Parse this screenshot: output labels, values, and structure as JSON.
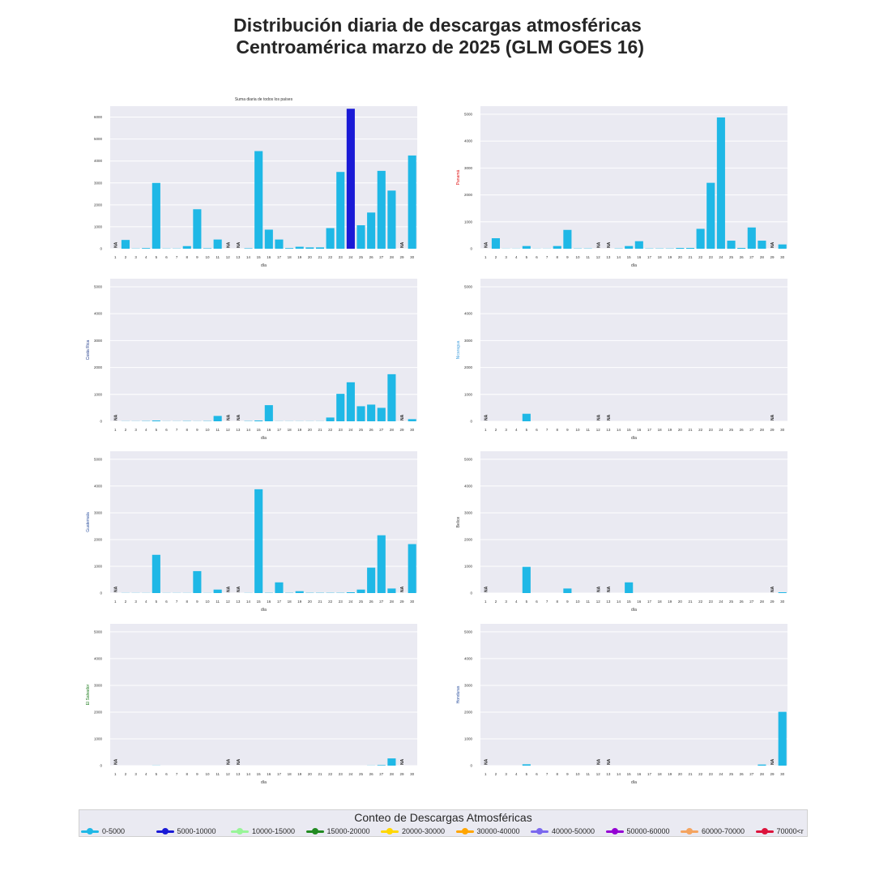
{
  "title_line1": "Distribución diaria de descargas atmosféricas",
  "title_line2": " Centroamérica marzo de 2025 (GLM GOES 16)",
  "legend": {
    "title": "Conteo de Descargas Atmosféricas",
    "items": [
      {
        "label": "0-5000",
        "color": "#1fb8e6"
      },
      {
        "label": "5000-10000",
        "color": "#1a1ad6"
      },
      {
        "label": "10000-15000",
        "color": "#98f598"
      },
      {
        "label": "15000-20000",
        "color": "#228b22"
      },
      {
        "label": "20000-30000",
        "color": "#ffd700"
      },
      {
        "label": "30000-40000",
        "color": "#ffa500"
      },
      {
        "label": "40000-50000",
        "color": "#7b68ee"
      },
      {
        "label": "50000-60000",
        "color": "#9400d3"
      },
      {
        "label": "60000-70000",
        "color": "#f4a460"
      },
      {
        "label": "70000<r",
        "color": "#dc143c"
      }
    ]
  },
  "chart_data": [
    {
      "type": "bar",
      "title": "Suma diaria de todos los países",
      "xlabel": "día",
      "ylabel": "",
      "ylabel_color": "#444444",
      "ylim": [
        0,
        6500
      ],
      "yticks": [
        0,
        1000,
        2000,
        3000,
        4000,
        5000,
        6000
      ],
      "categories": [
        "1",
        "2",
        "3",
        "4",
        "5",
        "6",
        "7",
        "8",
        "9",
        "10",
        "11",
        "12",
        "13",
        "14",
        "15",
        "16",
        "17",
        "18",
        "19",
        "20",
        "21",
        "22",
        "23",
        "24",
        "25",
        "26",
        "27",
        "28",
        "29",
        "30"
      ],
      "values": [
        null,
        400,
        10,
        30,
        3000,
        10,
        10,
        120,
        1800,
        20,
        420,
        null,
        null,
        20,
        4450,
        870,
        420,
        30,
        90,
        60,
        60,
        940,
        3500,
        6380,
        1070,
        1650,
        3550,
        2650,
        null,
        4250
      ],
      "colors": [
        "#1fb8e6",
        "#1fb8e6",
        "#1fb8e6",
        "#1fb8e6",
        "#1fb8e6",
        "#1fb8e6",
        "#1fb8e6",
        "#1fb8e6",
        "#1fb8e6",
        "#1fb8e6",
        "#1fb8e6",
        "#1fb8e6",
        "#1fb8e6",
        "#1fb8e6",
        "#1fb8e6",
        "#1fb8e6",
        "#1fb8e6",
        "#1fb8e6",
        "#1fb8e6",
        "#1fb8e6",
        "#1fb8e6",
        "#1fb8e6",
        "#1fb8e6",
        "#1a1ad6",
        "#1fb8e6",
        "#1fb8e6",
        "#1fb8e6",
        "#1fb8e6",
        "#1fb8e6",
        "#1fb8e6"
      ],
      "na_label": "NA",
      "grid": true
    },
    {
      "type": "bar",
      "title": "",
      "xlabel": "día",
      "ylabel": "Panamá",
      "ylabel_color": "#e01010",
      "ylim": [
        0,
        5300
      ],
      "yticks": [
        0,
        1000,
        2000,
        3000,
        4000,
        5000
      ],
      "categories": [
        "1",
        "2",
        "3",
        "4",
        "5",
        "6",
        "7",
        "8",
        "9",
        "10",
        "11",
        "12",
        "13",
        "14",
        "15",
        "16",
        "17",
        "18",
        "19",
        "20",
        "21",
        "22",
        "23",
        "24",
        "25",
        "26",
        "27",
        "28",
        "29",
        "30"
      ],
      "values": [
        null,
        390,
        5,
        5,
        100,
        5,
        5,
        100,
        700,
        10,
        10,
        null,
        null,
        10,
        100,
        280,
        10,
        10,
        10,
        30,
        30,
        740,
        2450,
        4880,
        300,
        30,
        790,
        300,
        null,
        160
      ],
      "na_label": "NA",
      "grid": true
    },
    {
      "type": "bar",
      "title": "",
      "xlabel": "día",
      "ylabel": "Costa Rica",
      "ylabel_color": "#1f3a8a",
      "ylim": [
        0,
        5300
      ],
      "yticks": [
        0,
        1000,
        2000,
        3000,
        4000,
        5000
      ],
      "categories": [
        "1",
        "2",
        "3",
        "4",
        "5",
        "6",
        "7",
        "8",
        "9",
        "10",
        "11",
        "12",
        "13",
        "14",
        "15",
        "16",
        "17",
        "18",
        "19",
        "20",
        "21",
        "22",
        "23",
        "24",
        "25",
        "26",
        "27",
        "28",
        "29",
        "30"
      ],
      "values": [
        null,
        5,
        5,
        10,
        30,
        5,
        5,
        10,
        5,
        10,
        200,
        null,
        null,
        10,
        30,
        600,
        5,
        5,
        5,
        5,
        5,
        140,
        1020,
        1450,
        560,
        620,
        500,
        1750,
        null,
        80
      ],
      "na_label": "NA",
      "grid": true
    },
    {
      "type": "bar",
      "title": "",
      "xlabel": "día",
      "ylabel": "Nicaragua",
      "ylabel_color": "#4aa3df",
      "ylim": [
        0,
        5300
      ],
      "yticks": [
        0,
        1000,
        2000,
        3000,
        4000,
        5000
      ],
      "categories": [
        "1",
        "2",
        "3",
        "4",
        "5",
        "6",
        "7",
        "8",
        "9",
        "10",
        "11",
        "12",
        "13",
        "14",
        "15",
        "16",
        "17",
        "18",
        "19",
        "20",
        "21",
        "22",
        "23",
        "24",
        "25",
        "26",
        "27",
        "28",
        "29",
        "30"
      ],
      "values": [
        null,
        0,
        0,
        0,
        280,
        0,
        0,
        0,
        0,
        0,
        0,
        null,
        null,
        0,
        0,
        0,
        0,
        0,
        0,
        0,
        0,
        0,
        0,
        0,
        0,
        0,
        0,
        0,
        null,
        0
      ],
      "na_label": "NA",
      "grid": true
    },
    {
      "type": "bar",
      "title": "",
      "xlabel": "día",
      "ylabel": "Guatemala",
      "ylabel_color": "#2a4f9e",
      "ylim": [
        0,
        5300
      ],
      "yticks": [
        0,
        1000,
        2000,
        3000,
        4000,
        5000
      ],
      "categories": [
        "1",
        "2",
        "3",
        "4",
        "5",
        "6",
        "7",
        "8",
        "9",
        "10",
        "11",
        "12",
        "13",
        "14",
        "15",
        "16",
        "17",
        "18",
        "19",
        "20",
        "21",
        "22",
        "23",
        "24",
        "25",
        "26",
        "27",
        "28",
        "29",
        "30"
      ],
      "values": [
        null,
        5,
        5,
        5,
        1430,
        5,
        5,
        5,
        820,
        5,
        130,
        null,
        null,
        5,
        3880,
        10,
        400,
        10,
        70,
        10,
        10,
        10,
        10,
        30,
        130,
        950,
        2160,
        170,
        null,
        1830
      ],
      "na_label": "NA",
      "grid": true
    },
    {
      "type": "bar",
      "title": "",
      "xlabel": "día",
      "ylabel": "Belice",
      "ylabel_color": "#444444",
      "ylim": [
        0,
        5300
      ],
      "yticks": [
        0,
        1000,
        2000,
        3000,
        4000,
        5000
      ],
      "categories": [
        "1",
        "2",
        "3",
        "4",
        "5",
        "6",
        "7",
        "8",
        "9",
        "10",
        "11",
        "12",
        "13",
        "14",
        "15",
        "16",
        "17",
        "18",
        "19",
        "20",
        "21",
        "22",
        "23",
        "24",
        "25",
        "26",
        "27",
        "28",
        "29",
        "30"
      ],
      "values": [
        null,
        0,
        0,
        0,
        980,
        0,
        0,
        0,
        170,
        0,
        0,
        null,
        null,
        0,
        400,
        0,
        0,
        0,
        0,
        0,
        0,
        0,
        0,
        0,
        0,
        0,
        0,
        0,
        null,
        30
      ],
      "na_label": "NA",
      "grid": true
    },
    {
      "type": "bar",
      "title": "",
      "xlabel": "día",
      "ylabel": "El Salvador",
      "ylabel_color": "#1a7a1a",
      "ylim": [
        0,
        5300
      ],
      "yticks": [
        0,
        1000,
        2000,
        3000,
        4000,
        5000
      ],
      "categories": [
        "1",
        "2",
        "3",
        "4",
        "5",
        "6",
        "7",
        "8",
        "9",
        "10",
        "11",
        "12",
        "13",
        "14",
        "15",
        "16",
        "17",
        "18",
        "19",
        "20",
        "21",
        "22",
        "23",
        "24",
        "25",
        "26",
        "27",
        "28",
        "29",
        "30"
      ],
      "values": [
        null,
        0,
        0,
        0,
        5,
        0,
        0,
        0,
        0,
        0,
        0,
        null,
        null,
        0,
        0,
        0,
        0,
        0,
        0,
        0,
        0,
        0,
        0,
        0,
        0,
        5,
        20,
        270,
        null,
        0
      ],
      "na_label": "NA",
      "grid": true
    },
    {
      "type": "bar",
      "title": "",
      "xlabel": "día",
      "ylabel": "Honduras",
      "ylabel_color": "#2a4f9e",
      "ylim": [
        0,
        5300
      ],
      "yticks": [
        0,
        1000,
        2000,
        3000,
        4000,
        5000
      ],
      "categories": [
        "1",
        "2",
        "3",
        "4",
        "5",
        "6",
        "7",
        "8",
        "9",
        "10",
        "11",
        "12",
        "13",
        "14",
        "15",
        "16",
        "17",
        "18",
        "19",
        "20",
        "21",
        "22",
        "23",
        "24",
        "25",
        "26",
        "27",
        "28",
        "29",
        "30"
      ],
      "values": [
        null,
        0,
        0,
        0,
        50,
        0,
        0,
        0,
        0,
        0,
        0,
        null,
        null,
        0,
        0,
        0,
        0,
        0,
        0,
        0,
        0,
        0,
        0,
        0,
        0,
        0,
        0,
        40,
        null,
        2010
      ],
      "na_label": "NA",
      "grid": true
    }
  ]
}
